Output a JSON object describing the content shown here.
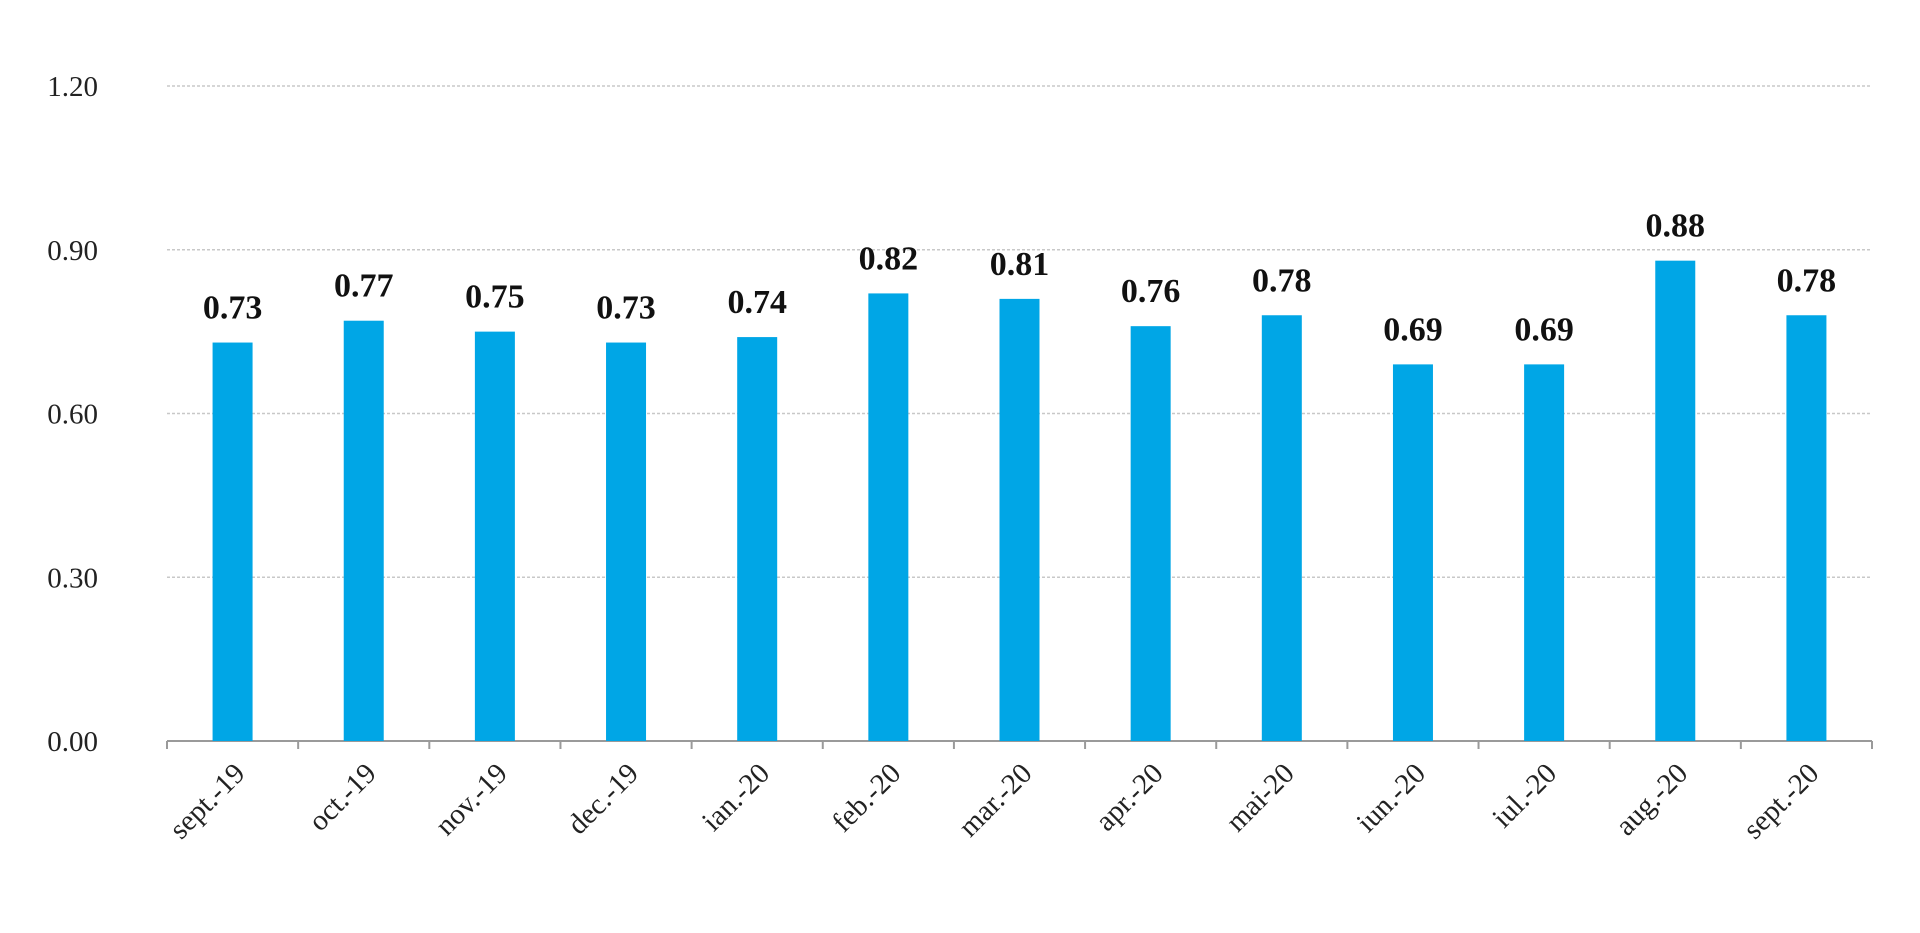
{
  "chart_data": {
    "type": "bar",
    "categories": [
      "sept.-19",
      "oct.-19",
      "nov.-19",
      "dec.-19",
      "ian.-20",
      "feb.-20",
      "mar.-20",
      "apr.-20",
      "mai-20",
      "iun.-20",
      "iul.-20",
      "aug.-20",
      "sept.-20"
    ],
    "values": [
      0.73,
      0.77,
      0.75,
      0.73,
      0.74,
      0.82,
      0.81,
      0.76,
      0.78,
      0.69,
      0.69,
      0.88,
      0.78
    ],
    "data_labels": [
      "0.73",
      "0.77",
      "0.75",
      "0.73",
      "0.74",
      "0.82",
      "0.81",
      "0.76",
      "0.78",
      "0.69",
      "0.69",
      "0.88",
      "0.78"
    ],
    "y_ticks": [
      {
        "value": 0.0,
        "label": "0.00"
      },
      {
        "value": 0.3,
        "label": "0.30"
      },
      {
        "value": 0.6,
        "label": "0.60"
      },
      {
        "value": 0.9,
        "label": "0.90"
      },
      {
        "value": 1.2,
        "label": "1.20"
      }
    ],
    "ylim": [
      0,
      1.2
    ],
    "title": "",
    "xlabel": "",
    "ylabel": "",
    "grid": true,
    "legend": "none",
    "bar_color": "#00a6e6",
    "x_label_rotation_deg": -45
  }
}
